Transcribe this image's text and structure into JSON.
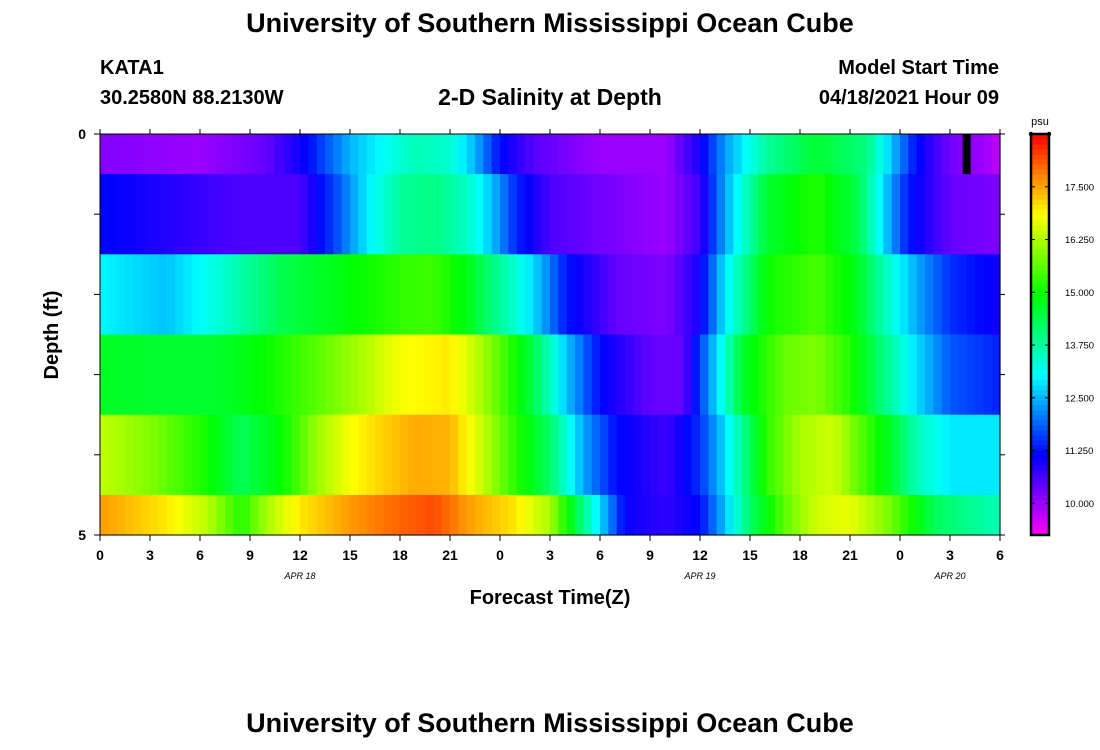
{
  "header": {
    "title": "University of Southern Mississippi Ocean Cube",
    "station_id": "KATA1",
    "coords": "30.2580N  88.2130W",
    "chart_title": "2-D Salinity at Depth",
    "start_label": "Model Start Time",
    "start_value": "04/18/2021 Hour 09"
  },
  "footer": {
    "title": "University of Southern Mississippi Ocean Cube"
  },
  "chart_data": {
    "type": "heatmap",
    "title": "2-D Salinity at Depth",
    "xlabel": "Forecast Time(Z)",
    "ylabel": "Depth (ft)",
    "x_range_hours": [
      0,
      54
    ],
    "y_range": [
      0,
      5
    ],
    "x_ticks": [
      {
        "hour": 0,
        "label": "0"
      },
      {
        "hour": 3,
        "label": "3"
      },
      {
        "hour": 6,
        "label": "6"
      },
      {
        "hour": 9,
        "label": "9"
      },
      {
        "hour": 12,
        "label": "12"
      },
      {
        "hour": 15,
        "label": "15"
      },
      {
        "hour": 18,
        "label": "18"
      },
      {
        "hour": 21,
        "label": "21"
      },
      {
        "hour": 24,
        "label": "0"
      },
      {
        "hour": 27,
        "label": "3"
      },
      {
        "hour": 30,
        "label": "6"
      },
      {
        "hour": 33,
        "label": "9"
      },
      {
        "hour": 36,
        "label": "12"
      },
      {
        "hour": 39,
        "label": "15"
      },
      {
        "hour": 42,
        "label": "18"
      },
      {
        "hour": 45,
        "label": "21"
      },
      {
        "hour": 48,
        "label": "0"
      },
      {
        "hour": 51,
        "label": "3"
      },
      {
        "hour": 54,
        "label": "6"
      }
    ],
    "date_labels": [
      {
        "hour": 12,
        "label": "APR 18"
      },
      {
        "hour": 36,
        "label": "APR 19"
      },
      {
        "hour": 51,
        "label": "APR 20"
      }
    ],
    "y_ticks": [
      {
        "value": 0,
        "label": "0"
      },
      {
        "value": 1,
        "label": ""
      },
      {
        "value": 2,
        "label": ""
      },
      {
        "value": 3,
        "label": ""
      },
      {
        "value": 4,
        "label": ""
      },
      {
        "value": 5,
        "label": "5"
      }
    ],
    "colorbar": {
      "unit": "psu",
      "range": [
        9.25,
        18.75
      ],
      "ticks": [
        "10.000",
        "11.250",
        "12.500",
        "13.750",
        "15.000",
        "16.250",
        "17.500"
      ]
    },
    "start_marker_hour": 52,
    "layers": [
      {
        "depth_top": 0,
        "depth_bottom": 0.5,
        "keys": [
          [
            0,
            10.2
          ],
          [
            6,
            10.0
          ],
          [
            10,
            10.4
          ],
          [
            12.5,
            11.2
          ],
          [
            15,
            12.5
          ],
          [
            17,
            13.1
          ],
          [
            19,
            13.6
          ],
          [
            21,
            13.4
          ],
          [
            22.5,
            12.5
          ],
          [
            24,
            11.2
          ],
          [
            26,
            10.5
          ],
          [
            30,
            10.0
          ],
          [
            34,
            10.0
          ],
          [
            36,
            11.0
          ],
          [
            37.5,
            12.3
          ],
          [
            40,
            13.8
          ],
          [
            43,
            14.6
          ],
          [
            46,
            14.0
          ],
          [
            47.5,
            12.6
          ],
          [
            49,
            11.2
          ],
          [
            51,
            10.3
          ],
          [
            53,
            10.0
          ],
          [
            54,
            9.7
          ]
        ]
      },
      {
        "depth_top": 0.5,
        "depth_bottom": 1.5,
        "keys": [
          [
            0,
            11.2
          ],
          [
            4,
            10.9
          ],
          [
            8,
            10.6
          ],
          [
            12,
            10.6
          ],
          [
            14,
            11.6
          ],
          [
            16,
            12.9
          ],
          [
            18,
            13.8
          ],
          [
            20,
            14.0
          ],
          [
            22,
            13.5
          ],
          [
            23.5,
            12.6
          ],
          [
            25,
            11.4
          ],
          [
            27,
            10.6
          ],
          [
            30,
            10.3
          ],
          [
            34,
            10.0
          ],
          [
            36,
            10.7
          ],
          [
            37.5,
            12.4
          ],
          [
            40,
            14.6
          ],
          [
            43,
            15.2
          ],
          [
            45.5,
            14.4
          ],
          [
            47,
            12.8
          ],
          [
            48.5,
            11.3
          ],
          [
            51,
            10.4
          ],
          [
            54,
            10.2
          ]
        ]
      },
      {
        "depth_top": 1.5,
        "depth_bottom": 2.5,
        "keys": [
          [
            0,
            13.0
          ],
          [
            4,
            12.6
          ],
          [
            7,
            13.3
          ],
          [
            11,
            14.4
          ],
          [
            15,
            14.9
          ],
          [
            18,
            15.3
          ],
          [
            20,
            15.4
          ],
          [
            22,
            14.8
          ],
          [
            24,
            13.8
          ],
          [
            26,
            12.8
          ],
          [
            28,
            11.3
          ],
          [
            31,
            10.4
          ],
          [
            34,
            10.2
          ],
          [
            36,
            11.0
          ],
          [
            37.5,
            12.9
          ],
          [
            40,
            15.0
          ],
          [
            43,
            15.5
          ],
          [
            45.5,
            14.7
          ],
          [
            47,
            13.6
          ],
          [
            49,
            12.4
          ],
          [
            51,
            11.5
          ],
          [
            54,
            11.0
          ]
        ]
      },
      {
        "depth_top": 2.5,
        "depth_bottom": 3.5,
        "keys": [
          [
            0,
            14.7
          ],
          [
            4,
            14.6
          ],
          [
            7,
            14.6
          ],
          [
            10,
            15.0
          ],
          [
            13,
            15.6
          ],
          [
            16,
            16.3
          ],
          [
            18,
            16.8
          ],
          [
            21,
            17.0
          ],
          [
            22.5,
            16.4
          ],
          [
            24,
            15.6
          ],
          [
            26,
            14.4
          ],
          [
            28,
            12.6
          ],
          [
            30,
            11.2
          ],
          [
            33,
            10.4
          ],
          [
            35,
            10.4
          ],
          [
            36.5,
            12.2
          ],
          [
            38.5,
            14.6
          ],
          [
            41,
            15.7
          ],
          [
            43,
            15.9
          ],
          [
            45,
            15.2
          ],
          [
            47,
            14.0
          ],
          [
            49,
            12.8
          ],
          [
            51,
            11.8
          ],
          [
            54,
            11.4
          ]
        ]
      },
      {
        "depth_top": 3.5,
        "depth_bottom": 4.5,
        "keys": [
          [
            0,
            16.4
          ],
          [
            3,
            15.9
          ],
          [
            6,
            15.2
          ],
          [
            8.5,
            14.3
          ],
          [
            11,
            15.0
          ],
          [
            13,
            16.1
          ],
          [
            15,
            16.8
          ],
          [
            17,
            17.2
          ],
          [
            19,
            17.5
          ],
          [
            21,
            17.4
          ],
          [
            23,
            16.4
          ],
          [
            25,
            15.2
          ],
          [
            27,
            14.2
          ],
          [
            29,
            12.4
          ],
          [
            31,
            11.2
          ],
          [
            34,
            10.7
          ],
          [
            36,
            11.5
          ],
          [
            37.5,
            12.8
          ],
          [
            40,
            15.3
          ],
          [
            42,
            16.2
          ],
          [
            44,
            16.5
          ],
          [
            46,
            15.4
          ],
          [
            47.5,
            14.6
          ],
          [
            49,
            13.6
          ],
          [
            51,
            12.9
          ],
          [
            54,
            12.9
          ]
        ]
      },
      {
        "depth_top": 4.5,
        "depth_bottom": 5.0,
        "keys": [
          [
            0,
            17.6
          ],
          [
            4,
            17.0
          ],
          [
            6.5,
            16.3
          ],
          [
            8.5,
            15.2
          ],
          [
            10,
            16.2
          ],
          [
            12,
            17.0
          ],
          [
            15,
            17.6
          ],
          [
            18,
            18.0
          ],
          [
            20,
            18.2
          ],
          [
            22,
            17.6
          ],
          [
            25,
            17.0
          ],
          [
            27,
            16.2
          ],
          [
            28.5,
            14.5
          ],
          [
            30,
            12.8
          ],
          [
            31.5,
            11.1
          ],
          [
            34,
            10.8
          ],
          [
            36,
            11.2
          ],
          [
            37.5,
            12.6
          ],
          [
            39,
            14.2
          ],
          [
            41,
            15.6
          ],
          [
            43,
            16.5
          ],
          [
            45,
            16.7
          ],
          [
            47,
            16.0
          ],
          [
            48.5,
            15.2
          ],
          [
            50,
            14.3
          ],
          [
            52,
            13.9
          ],
          [
            54,
            13.6
          ]
        ]
      }
    ]
  }
}
